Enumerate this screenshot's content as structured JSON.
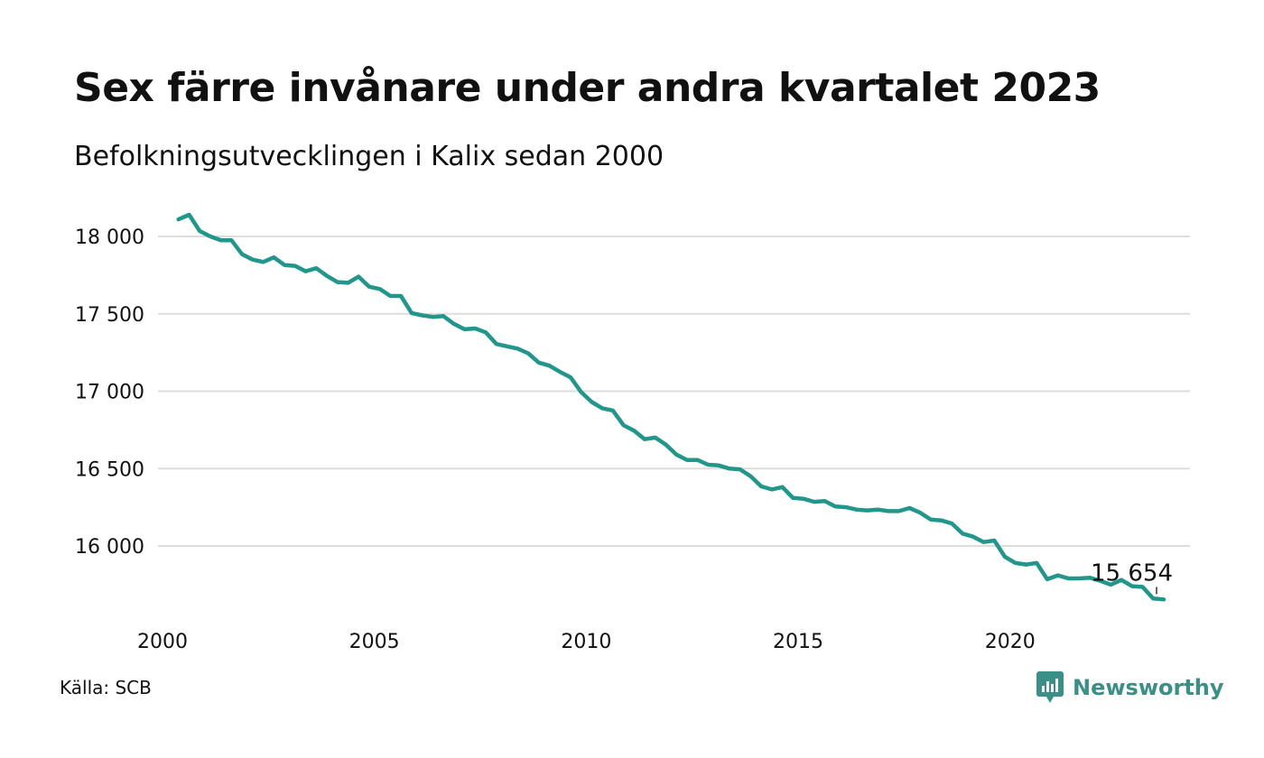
{
  "title": "Sex färre invånare under andra kvartalet 2023",
  "subtitle": "Befolkningsutvecklingen i Kalix sedan 2000",
  "source": "Källa: SCB",
  "brand": {
    "name": "Newsworthy",
    "icon": "newsworthy-logo-icon",
    "color": "#3a8f86"
  },
  "colors": {
    "line": "#21978b",
    "grid": "#dddddd",
    "text": "#111111"
  },
  "chart_data": {
    "type": "line",
    "title": "Sex färre invånare under andra kvartalet 2023",
    "subtitle": "Befolkningsutvecklingen i Kalix sedan 2000",
    "xlabel": "",
    "ylabel": "",
    "xlim": [
      2000,
      2024.4
    ],
    "ylim": [
      15550,
      18200
    ],
    "x_ticks": [
      2000,
      2005,
      2010,
      2015,
      2020
    ],
    "x_tick_labels": [
      "2000",
      "2005",
      "2010",
      "2015",
      "2020"
    ],
    "y_ticks": [
      16000,
      16500,
      17000,
      17500,
      18000
    ],
    "y_tick_labels": [
      "16 000",
      "16 500",
      "17 000",
      "17 500",
      "18 000"
    ],
    "grid": true,
    "legend": "none",
    "series": [
      {
        "color": "#21978b",
        "x": [
          2000.25,
          2000.5,
          2000.75,
          2001.0,
          2001.25,
          2001.5,
          2001.75,
          2002.0,
          2002.25,
          2002.5,
          2002.75,
          2003.0,
          2003.25,
          2003.5,
          2003.75,
          2004.0,
          2004.25,
          2004.5,
          2004.75,
          2005.0,
          2005.25,
          2005.5,
          2005.75,
          2006.0,
          2006.25,
          2006.5,
          2006.75,
          2007.0,
          2007.25,
          2007.5,
          2007.75,
          2008.0,
          2008.25,
          2008.5,
          2008.75,
          2009.0,
          2009.25,
          2009.5,
          2009.75,
          2010.0,
          2010.25,
          2010.5,
          2010.75,
          2011.0,
          2011.25,
          2011.5,
          2011.75,
          2012.0,
          2012.25,
          2012.5,
          2012.75,
          2013.0,
          2013.25,
          2013.5,
          2013.75,
          2014.0,
          2014.25,
          2014.5,
          2014.75,
          2015.0,
          2015.25,
          2015.5,
          2015.75,
          2016.0,
          2016.25,
          2016.5,
          2016.75,
          2017.0,
          2017.25,
          2017.5,
          2017.75,
          2018.0,
          2018.25,
          2018.5,
          2018.75,
          2019.0,
          2019.25,
          2019.5,
          2019.75,
          2020.0,
          2020.25,
          2020.5,
          2020.75,
          2021.0,
          2021.25,
          2021.5,
          2021.75,
          2022.0,
          2022.25,
          2022.5,
          2022.75,
          2023.0,
          2023.25,
          2023.5
        ],
        "y": [
          18110,
          18140,
          18035,
          18000,
          17975,
          17975,
          17885,
          17850,
          17835,
          17865,
          17815,
          17810,
          17775,
          17795,
          17745,
          17705,
          17700,
          17740,
          17675,
          17660,
          17615,
          17615,
          17505,
          17490,
          17480,
          17485,
          17435,
          17400,
          17405,
          17380,
          17305,
          17290,
          17275,
          17245,
          17185,
          17165,
          17125,
          17090,
          16995,
          16930,
          16890,
          16875,
          16780,
          16745,
          16690,
          16700,
          16655,
          16590,
          16555,
          16555,
          16525,
          16520,
          16500,
          16495,
          16450,
          16385,
          16365,
          16380,
          16310,
          16305,
          16285,
          16290,
          16255,
          16250,
          16235,
          16230,
          16235,
          16225,
          16225,
          16245,
          16215,
          16170,
          16165,
          16145,
          16080,
          16060,
          16025,
          16035,
          15930,
          15890,
          15880,
          15890,
          15785,
          15810,
          15790,
          15790,
          15795,
          15775,
          15750,
          15780,
          15740,
          15735,
          15660,
          15654
        ]
      }
    ],
    "annotations": [
      {
        "x": 2023.5,
        "y": 15654,
        "text": "15 654"
      }
    ]
  }
}
